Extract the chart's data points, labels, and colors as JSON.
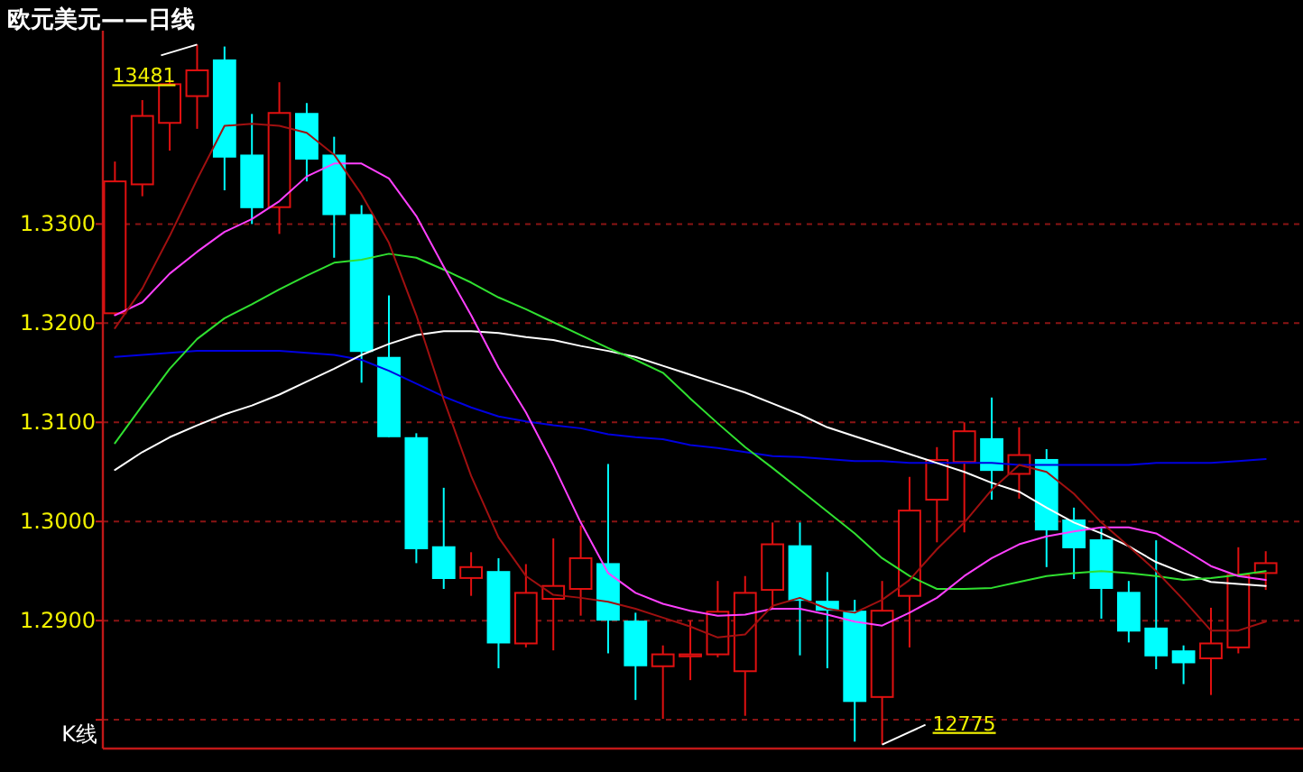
{
  "chart_data": {
    "type": "candlestick",
    "title": "欧元美元——日线",
    "categories": [
      null,
      null,
      null,
      null,
      null,
      null,
      null,
      null,
      null,
      null,
      null,
      null,
      null,
      null,
      null,
      null,
      null,
      null,
      null,
      null,
      null,
      null,
      null,
      null,
      null,
      null,
      null,
      null,
      null,
      null,
      null,
      null,
      null,
      null,
      null,
      null,
      null,
      null,
      null,
      null,
      null,
      null,
      null
    ],
    "ohlc": [
      [
        1.321,
        1.3363,
        1.3208,
        1.3343
      ],
      [
        1.334,
        1.3425,
        1.3328,
        1.3409
      ],
      [
        1.3402,
        1.3448,
        1.3374,
        1.3441
      ],
      [
        1.3429,
        1.3481,
        1.3396,
        1.3455
      ],
      [
        1.3466,
        1.3479,
        1.3334,
        1.3367
      ],
      [
        1.337,
        1.3411,
        1.33,
        1.3316
      ],
      [
        1.3317,
        1.3443,
        1.329,
        1.3412
      ],
      [
        1.3412,
        1.3422,
        1.3343,
        1.3365
      ],
      [
        1.337,
        1.3388,
        1.3266,
        1.3309
      ],
      [
        1.331,
        1.3319,
        1.314,
        1.3171
      ],
      [
        1.3166,
        1.3228,
        1.3085,
        1.3085
      ],
      [
        1.3085,
        1.3089,
        1.2958,
        1.2972
      ],
      [
        1.2975,
        1.3034,
        1.2932,
        1.2942
      ],
      [
        1.2943,
        1.2969,
        1.2925,
        1.2954
      ],
      [
        1.295,
        1.2963,
        1.2852,
        1.2877
      ],
      [
        1.2877,
        1.2957,
        1.2873,
        1.2928
      ],
      [
        1.2922,
        1.2983,
        1.287,
        1.2935
      ],
      [
        1.2932,
        1.2996,
        1.2905,
        1.2963
      ],
      [
        1.2958,
        1.3058,
        1.2867,
        1.29
      ],
      [
        1.29,
        1.2908,
        1.282,
        1.2854
      ],
      [
        1.2854,
        1.2875,
        1.2801,
        1.2866
      ],
      [
        1.2864,
        1.29,
        1.284,
        1.2866
      ],
      [
        1.2866,
        1.294,
        1.2863,
        1.2909
      ],
      [
        1.2849,
        1.2945,
        1.2804,
        1.2928
      ],
      [
        1.2931,
        1.2999,
        1.2911,
        1.2977
      ],
      [
        1.2976,
        1.2999,
        1.2865,
        1.292
      ],
      [
        1.292,
        1.2949,
        1.2852,
        1.291
      ],
      [
        1.291,
        1.2921,
        1.2778,
        1.2818
      ],
      [
        1.2823,
        1.294,
        1.2775,
        1.291
      ],
      [
        1.2925,
        1.3045,
        1.2873,
        1.3011
      ],
      [
        1.3022,
        1.3075,
        1.2979,
        1.3062
      ],
      [
        1.306,
        1.31,
        1.2989,
        1.3091
      ],
      [
        1.3084,
        1.3125,
        1.3022,
        1.3051
      ],
      [
        1.3048,
        1.3095,
        1.3023,
        1.3067
      ],
      [
        1.3063,
        1.3073,
        1.2954,
        1.2991
      ],
      [
        1.3002,
        1.3014,
        1.2942,
        1.2973
      ],
      [
        1.2982,
        1.2993,
        1.2902,
        1.2932
      ],
      [
        1.2929,
        1.294,
        1.2878,
        1.2889
      ],
      [
        1.2893,
        1.2981,
        1.2851,
        1.2864
      ],
      [
        1.287,
        1.2875,
        1.2836,
        1.2857
      ],
      [
        1.2862,
        1.2913,
        1.2825,
        1.2877
      ],
      [
        1.2873,
        1.2974,
        1.2867,
        1.2946
      ],
      [
        1.2948,
        1.297,
        1.2931,
        1.2958
      ]
    ],
    "colors": [
      "#e01010",
      "#e01010",
      "#e01010",
      "#e01010",
      "#00ffff",
      "#00ffff",
      "#e01010",
      "#00ffff",
      "#00ffff",
      "#00ffff",
      "#00ffff",
      "#00ffff",
      "#00ffff",
      "#e01010",
      "#00ffff",
      "#e01010",
      "#e01010",
      "#e01010",
      "#00ffff",
      "#00ffff",
      "#e01010",
      "#e01010",
      "#e01010",
      "#e01010",
      "#e01010",
      "#00ffff",
      "#00ffff",
      "#00ffff",
      "#e01010",
      "#e01010",
      "#e01010",
      "#e01010",
      "#00ffff",
      "#e01010",
      "#00ffff",
      "#00ffff",
      "#00ffff",
      "#00ffff",
      "#00ffff",
      "#00ffff",
      "#e01010",
      "#e01010",
      "#e01010"
    ],
    "series": [
      {
        "type": "line",
        "color": "#0000e0",
        "values": [
          1.3166,
          1.3168,
          1.317,
          1.3172,
          1.3172,
          1.3172,
          1.3172,
          1.317,
          1.3168,
          1.3163,
          1.3152,
          1.3139,
          1.3126,
          1.3115,
          1.3106,
          1.3101,
          1.3097,
          1.3094,
          1.3088,
          1.3085,
          1.3083,
          1.3077,
          1.3074,
          1.307,
          1.3066,
          1.3065,
          1.3063,
          1.3061,
          1.3061,
          1.3059,
          1.3059,
          1.3059,
          1.3059,
          1.3057,
          1.3057,
          1.3057,
          1.3057,
          1.3057,
          1.3059,
          1.3059,
          1.3059,
          1.3061,
          1.3063
        ]
      },
      {
        "type": "line",
        "color": "#ffffff",
        "values": [
          1.3052,
          1.307,
          1.3085,
          1.3097,
          1.3108,
          1.3117,
          1.3128,
          1.3141,
          1.3154,
          1.3168,
          1.3179,
          1.3188,
          1.3192,
          1.3192,
          1.319,
          1.3186,
          1.3183,
          1.3177,
          1.3172,
          1.3166,
          1.3157,
          1.3148,
          1.3139,
          1.313,
          1.3119,
          1.3108,
          1.3095,
          1.3086,
          1.3077,
          1.3068,
          1.3059,
          1.305,
          1.3039,
          1.303,
          1.3014,
          1.2999,
          1.2988,
          1.2975,
          1.2959,
          1.2948,
          1.2939,
          1.2937,
          1.2935
        ]
      },
      {
        "type": "line",
        "color": "#30e030",
        "values": [
          1.3079,
          1.3117,
          1.3154,
          1.3184,
          1.3205,
          1.3219,
          1.3234,
          1.3248,
          1.3261,
          1.3264,
          1.327,
          1.3266,
          1.3254,
          1.3241,
          1.3226,
          1.3214,
          1.3201,
          1.3188,
          1.3175,
          1.3163,
          1.315,
          1.3124,
          1.3099,
          1.3075,
          1.3054,
          1.3032,
          1.301,
          1.2988,
          1.2963,
          1.2945,
          1.2932,
          1.2932,
          1.2933,
          1.2939,
          1.2945,
          1.2948,
          1.295,
          1.2948,
          1.2945,
          1.2941,
          1.2943,
          1.2946,
          1.295
        ]
      },
      {
        "type": "line",
        "color": "#ff40ff",
        "values": [
          1.3208,
          1.3221,
          1.325,
          1.3272,
          1.3292,
          1.3305,
          1.3323,
          1.3348,
          1.3361,
          1.3361,
          1.3346,
          1.3308,
          1.3257,
          1.3208,
          1.3155,
          1.311,
          1.3057,
          1.2999,
          1.2948,
          1.2928,
          1.2917,
          1.291,
          1.2905,
          1.2906,
          1.2912,
          1.2912,
          1.2906,
          1.2899,
          1.2895,
          1.2908,
          1.2923,
          1.2945,
          1.2963,
          1.2977,
          1.2985,
          1.299,
          1.2994,
          1.2994,
          1.2988,
          1.2972,
          1.2955,
          1.2945,
          1.2941
        ]
      },
      {
        "type": "line",
        "color": "#a01010",
        "values": [
          1.3195,
          1.3235,
          1.3288,
          1.3345,
          1.3399,
          1.3401,
          1.3399,
          1.3392,
          1.337,
          1.333,
          1.3281,
          1.3208,
          1.3123,
          1.3046,
          1.2984,
          1.2945,
          1.2926,
          1.2923,
          1.2919,
          1.2912,
          1.2903,
          1.2894,
          1.2883,
          1.2886,
          1.2915,
          1.2923,
          1.2912,
          1.2908,
          1.2921,
          1.2941,
          1.2972,
          1.2999,
          1.3032,
          1.3057,
          1.305,
          1.3028,
          1.2999,
          1.2975,
          1.295,
          1.2921,
          1.289,
          1.289,
          1.2899
        ]
      }
    ],
    "ylim": [
      1.2771,
      1.3495
    ],
    "yticks": [
      {
        "value": 1.28,
        "label": null
      },
      {
        "value": 1.29,
        "label": "1.2900"
      },
      {
        "value": 1.3,
        "label": "1.3000"
      },
      {
        "value": 1.31,
        "label": "1.3100"
      },
      {
        "value": 1.32,
        "label": "1.3200"
      },
      {
        "value": 1.33,
        "label": "1.3300"
      }
    ],
    "grid": "y",
    "annotations": [
      "K线",
      "13481",
      "12775"
    ]
  }
}
